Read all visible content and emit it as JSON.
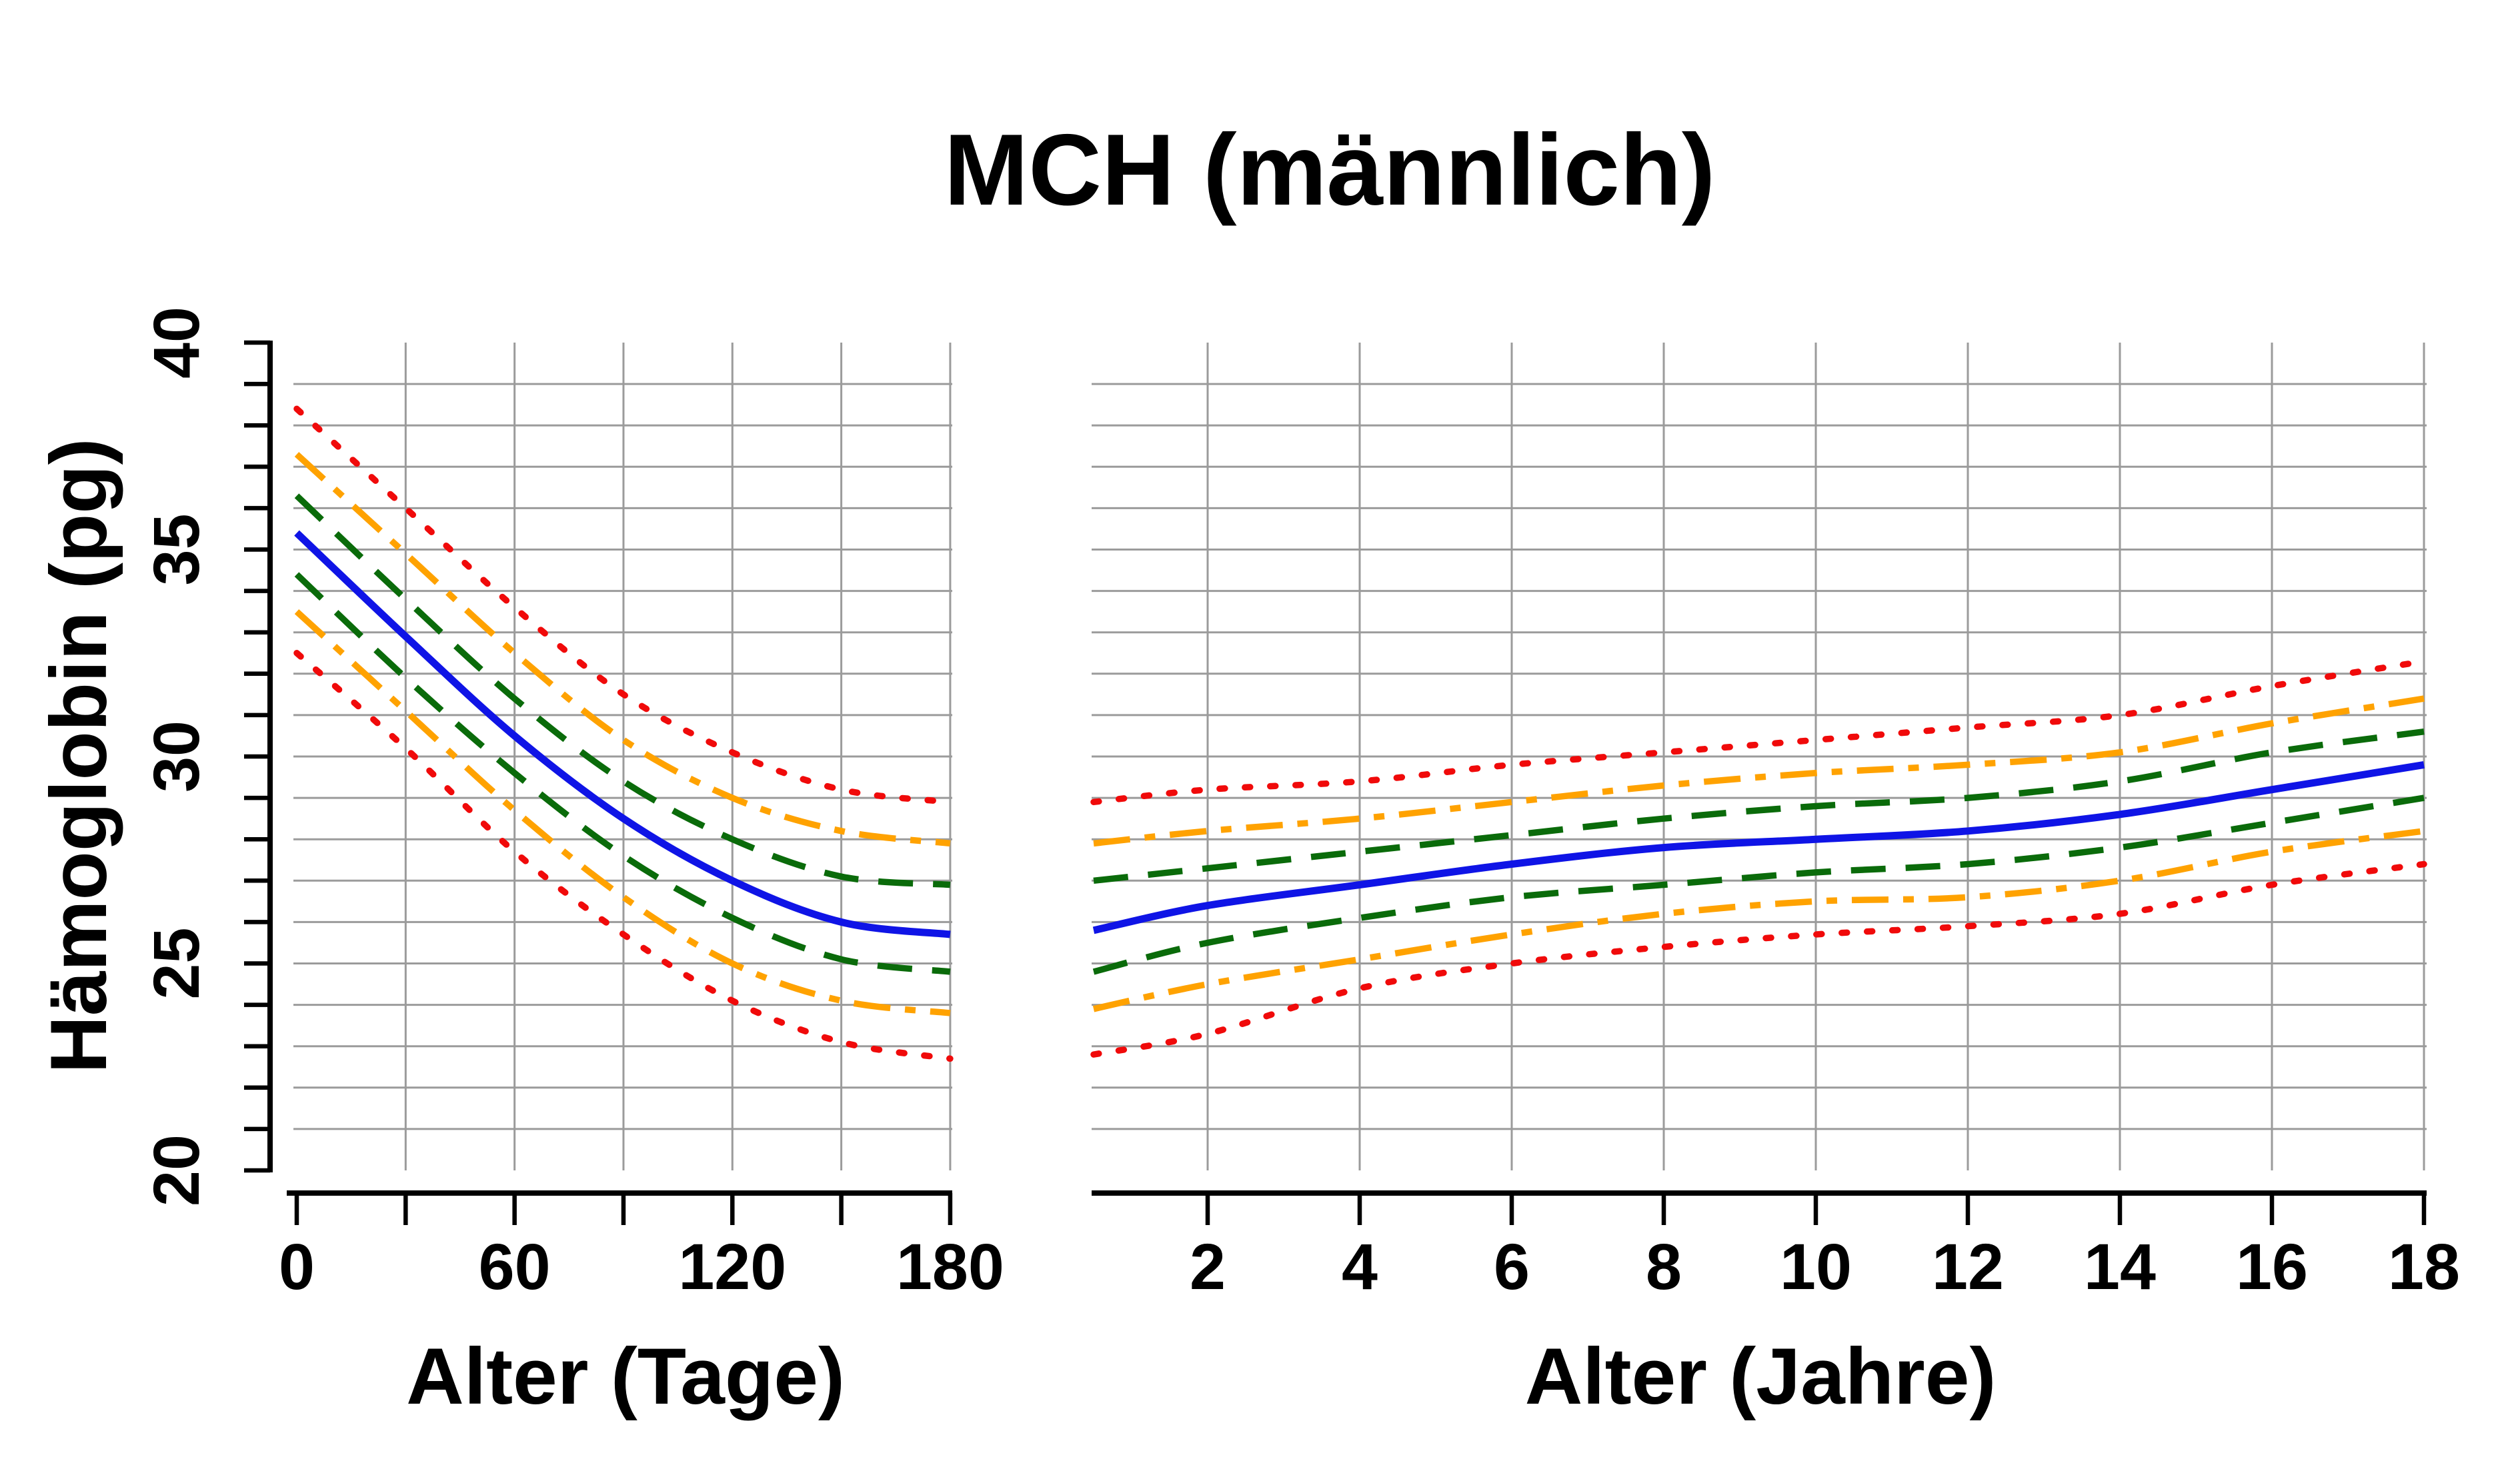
{
  "title": "MCH (männlich)",
  "chart_data": {
    "type": "line",
    "title": "MCH (männlich)",
    "ylabel": "Hämoglobin (pg)",
    "ylim": [
      20,
      40
    ],
    "y_ticks": [
      20,
      25,
      30,
      35,
      40
    ],
    "y_minor_tick_step": 1,
    "grid": true,
    "legend": "none",
    "grid_color": "#9b9b9b",
    "axis_color": "#000000",
    "background": "#ffffff",
    "style_colors": {
      "red": "#f00a0a",
      "orange": "#ffa200",
      "green": "#0a6b0a",
      "blue": "#0f14e6"
    },
    "panels": [
      {
        "id": "days",
        "xlabel": "Alter (Tage)",
        "xlim": [
          0,
          180
        ],
        "x_ticks": [
          0,
          30,
          60,
          90,
          120,
          150,
          180
        ],
        "x_tick_labels": [
          "0",
          "",
          "60",
          "",
          "120",
          "",
          "180"
        ],
        "x": [
          0,
          30,
          60,
          90,
          120,
          150,
          180
        ],
        "series": [
          {
            "name": "upper-red-dotted",
            "color": "#f00a0a",
            "style": "dotted",
            "values": [
              38.4,
              36.0,
              33.6,
              31.5,
              30.1,
              29.2,
              28.9
            ]
          },
          {
            "name": "upper-orange-dashdot",
            "color": "#ffa200",
            "style": "dashdot",
            "values": [
              37.3,
              34.9,
              32.5,
              30.4,
              29.0,
              28.2,
              27.9
            ]
          },
          {
            "name": "upper-green-dashed",
            "color": "#0a6b0a",
            "style": "dashed",
            "values": [
              36.3,
              33.8,
              31.4,
              29.4,
              28.0,
              27.1,
              26.9
            ]
          },
          {
            "name": "median-blue-solid",
            "color": "#0f14e6",
            "style": "solid",
            "values": [
              35.4,
              32.9,
              30.5,
              28.5,
              27.0,
              26.0,
              25.7
            ]
          },
          {
            "name": "lower-green-dashed",
            "color": "#0a6b0a",
            "style": "dashed",
            "values": [
              34.4,
              31.9,
              29.6,
              27.6,
              26.1,
              25.1,
              24.8
            ]
          },
          {
            "name": "lower-orange-dashdot",
            "color": "#ffa200",
            "style": "dashdot",
            "values": [
              33.5,
              31.1,
              28.7,
              26.6,
              25.0,
              24.1,
              23.8
            ]
          },
          {
            "name": "lower-red-dotted",
            "color": "#f00a0a",
            "style": "dotted",
            "values": [
              32.5,
              30.2,
              27.7,
              25.7,
              24.1,
              23.1,
              22.7
            ]
          }
        ]
      },
      {
        "id": "years",
        "xlabel": "Alter (Jahre)",
        "xlim": [
          0.5,
          18
        ],
        "x_ticks": [
          2,
          4,
          6,
          8,
          10,
          12,
          14,
          16,
          18
        ],
        "x_tick_labels": [
          "2",
          "4",
          "6",
          "8",
          "10",
          "12",
          "14",
          "16",
          "18"
        ],
        "x": [
          0.5,
          2,
          4,
          6,
          8,
          10,
          12,
          14,
          16,
          18
        ],
        "series": [
          {
            "name": "upper-red-dotted",
            "color": "#f00a0a",
            "style": "dotted",
            "values": [
              28.9,
              29.2,
              29.4,
              29.8,
              30.1,
              30.4,
              30.7,
              31.0,
              31.7,
              32.3
            ]
          },
          {
            "name": "upper-orange-dashdot",
            "color": "#ffa200",
            "style": "dashdot",
            "values": [
              27.9,
              28.2,
              28.5,
              28.9,
              29.3,
              29.6,
              29.8,
              30.1,
              30.8,
              31.4
            ]
          },
          {
            "name": "upper-green-dashed",
            "color": "#0a6b0a",
            "style": "dashed",
            "values": [
              27.0,
              27.3,
              27.7,
              28.1,
              28.5,
              28.8,
              29.0,
              29.4,
              30.1,
              30.6
            ]
          },
          {
            "name": "median-blue-solid",
            "color": "#0f14e6",
            "style": "solid",
            "values": [
              25.8,
              26.4,
              26.9,
              27.4,
              27.8,
              28.0,
              28.2,
              28.6,
              29.2,
              29.8
            ]
          },
          {
            "name": "lower-green-dashed",
            "color": "#0a6b0a",
            "style": "dashed",
            "values": [
              24.8,
              25.5,
              26.1,
              26.6,
              26.9,
              27.2,
              27.4,
              27.8,
              28.4,
              29.0
            ]
          },
          {
            "name": "lower-orange-dashdot",
            "color": "#ffa200",
            "style": "dashdot",
            "values": [
              23.9,
              24.5,
              25.1,
              25.7,
              26.2,
              26.5,
              26.6,
              27.0,
              27.7,
              28.2
            ]
          },
          {
            "name": "lower-red-dotted",
            "color": "#f00a0a",
            "style": "dotted",
            "values": [
              22.8,
              23.3,
              24.4,
              25.0,
              25.4,
              25.7,
              25.9,
              26.2,
              26.9,
              27.4
            ]
          }
        ]
      }
    ]
  }
}
